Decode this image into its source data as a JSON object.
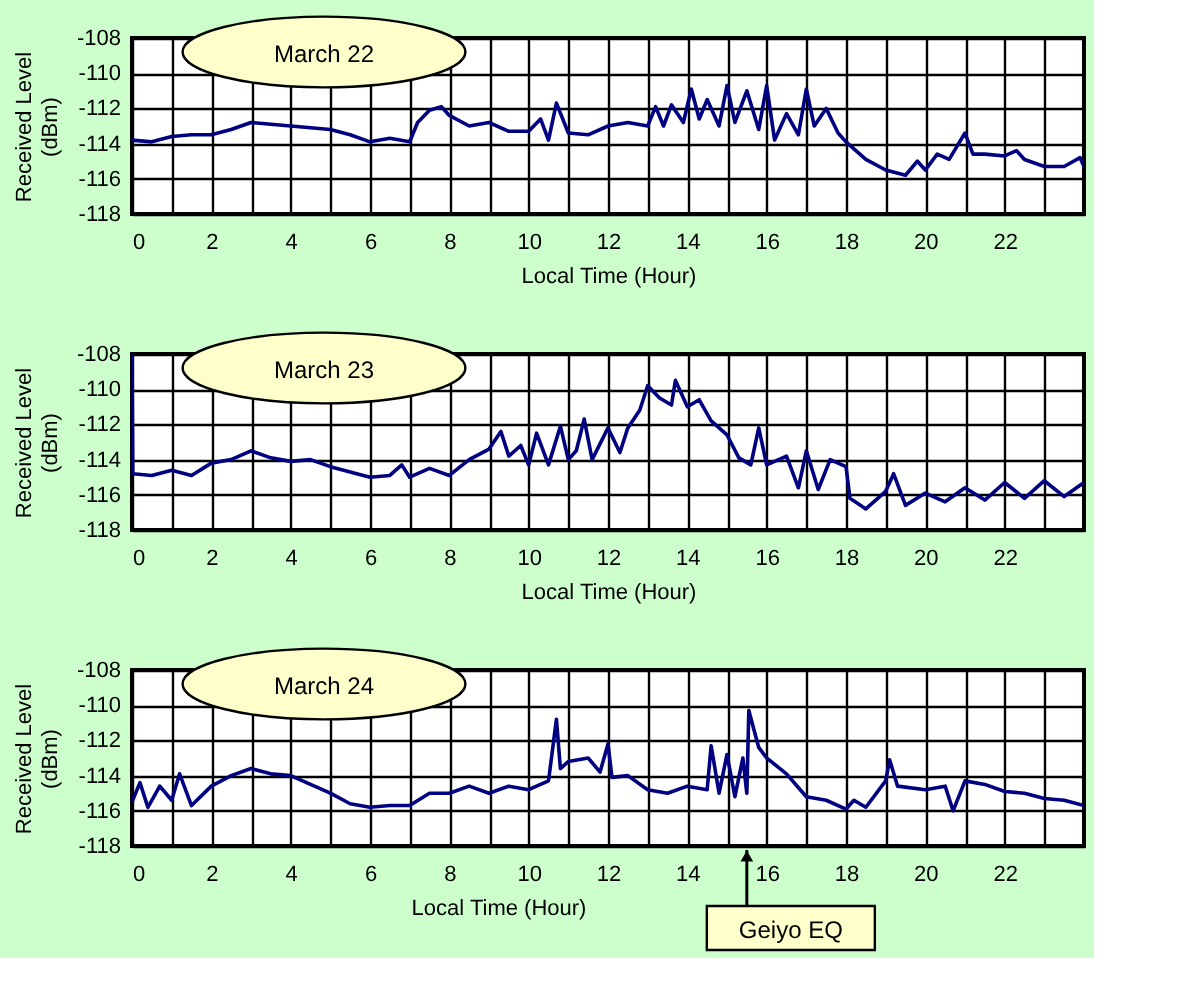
{
  "chart_data": [
    {
      "type": "line",
      "xlabel": "Local Time (Hour)",
      "ylabel": "Received Level\n(dBm)",
      "xlim": [
        0,
        24
      ],
      "ylim": [
        -118,
        -108
      ],
      "grid": true,
      "xticks": [
        0,
        {
          "value": 1,
          "label": null
        },
        2,
        {
          "value": 3,
          "label": null
        },
        4,
        {
          "value": 5,
          "label": null
        },
        6,
        {
          "value": 7,
          "label": null
        },
        8,
        {
          "value": 9,
          "label": null
        },
        10,
        {
          "value": 11,
          "label": null
        },
        12,
        {
          "value": 13,
          "label": null
        },
        14,
        {
          "value": 15,
          "label": null
        },
        16,
        {
          "value": 17,
          "label": null
        },
        18,
        {
          "value": 19,
          "label": null
        },
        20,
        {
          "value": 21,
          "label": null
        },
        22,
        {
          "value": 23,
          "label": null
        }
      ],
      "yticks": [
        -118,
        -116,
        -114,
        -112,
        -110,
        -108
      ],
      "annotations": [
        "March 22"
      ],
      "x": [
        0,
        0.5,
        1,
        1.5,
        2,
        2.5,
        3,
        3.5,
        4,
        4.5,
        5,
        5.5,
        6,
        6.5,
        7,
        7.2,
        7.5,
        7.8,
        8,
        8.5,
        9,
        9.5,
        10,
        10.3,
        10.5,
        10.7,
        11,
        11.5,
        12,
        12.5,
        13,
        13.2,
        13.4,
        13.6,
        13.9,
        14.1,
        14.3,
        14.5,
        14.8,
        15.0,
        15.2,
        15.5,
        15.8,
        16.0,
        16.2,
        16.5,
        16.8,
        17.0,
        17.2,
        17.5,
        17.8,
        18,
        18.5,
        19,
        19.5,
        19.8,
        20,
        20.3,
        20.6,
        21,
        21.2,
        21.5,
        22,
        22.3,
        22.5,
        23,
        23.5,
        23.9,
        24
      ],
      "series": [
        {
          "color": "#000080",
          "values": [
            -113.8,
            -113.9,
            -113.6,
            -113.5,
            -113.5,
            -113.2,
            -112.8,
            -112.9,
            -113.0,
            -113.1,
            -113.2,
            -113.5,
            -113.9,
            -113.7,
            -113.9,
            -112.8,
            -112.1,
            -111.9,
            -112.4,
            -113.0,
            -112.8,
            -113.3,
            -113.3,
            -112.6,
            -113.8,
            -111.7,
            -113.4,
            -113.5,
            -113.0,
            -112.8,
            -113.0,
            -111.9,
            -113.0,
            -111.8,
            -112.8,
            -110.9,
            -112.6,
            -111.5,
            -113.0,
            -110.7,
            -112.8,
            -111.0,
            -113.2,
            -110.7,
            -113.8,
            -112.3,
            -113.5,
            -110.9,
            -113.0,
            -112.0,
            -113.4,
            -113.9,
            -114.9,
            -115.5,
            -115.8,
            -115.0,
            -115.5,
            -114.6,
            -114.9,
            -113.4,
            -114.6,
            -114.6,
            -114.7,
            -114.4,
            -114.9,
            -115.3,
            -115.3,
            -114.8,
            -115.3
          ]
        }
      ]
    },
    {
      "type": "line",
      "xlabel": "Local Time (Hour)",
      "ylabel": "Received Level\n(dBm)",
      "xlim": [
        0,
        24
      ],
      "ylim": [
        -118,
        -108
      ],
      "grid": true,
      "xticks": [
        0,
        {
          "value": 1,
          "label": null
        },
        2,
        {
          "value": 3,
          "label": null
        },
        4,
        {
          "value": 5,
          "label": null
        },
        6,
        {
          "value": 7,
          "label": null
        },
        8,
        {
          "value": 9,
          "label": null
        },
        10,
        {
          "value": 11,
          "label": null
        },
        12,
        {
          "value": 13,
          "label": null
        },
        14,
        {
          "value": 15,
          "label": null
        },
        16,
        {
          "value": 17,
          "label": null
        },
        18,
        {
          "value": 19,
          "label": null
        },
        20,
        {
          "value": 21,
          "label": null
        },
        22,
        {
          "value": 23,
          "label": null
        }
      ],
      "yticks": [
        -118,
        -116,
        -114,
        -112,
        -110,
        -108
      ],
      "annotations": [
        "March 23"
      ],
      "x": [
        0,
        0.02,
        0.5,
        1,
        1.5,
        2,
        2.5,
        3,
        3.5,
        4,
        4.5,
        5,
        5.5,
        6,
        6.5,
        6.8,
        7,
        7.5,
        8,
        8.5,
        9,
        9.3,
        9.5,
        9.8,
        10,
        10.2,
        10.5,
        10.8,
        11,
        11.2,
        11.4,
        11.6,
        12,
        12.3,
        12.5,
        12.8,
        13,
        13.3,
        13.6,
        13.7,
        14,
        14.3,
        14.6,
        15,
        15.3,
        15.6,
        15.8,
        16,
        16.5,
        16.8,
        17,
        17.3,
        17.6,
        18,
        18.1,
        18.5,
        19,
        19.2,
        19.5,
        20,
        20.5,
        21,
        21.5,
        22,
        22.5,
        23,
        23.5,
        24
      ],
      "series": [
        {
          "color": "#000080",
          "values": [
            -108.0,
            -114.8,
            -114.9,
            -114.6,
            -114.9,
            -114.2,
            -114.0,
            -113.5,
            -113.9,
            -114.1,
            -114.0,
            -114.4,
            -114.7,
            -115.0,
            -114.9,
            -114.3,
            -115.0,
            -114.5,
            -114.9,
            -114.0,
            -113.4,
            -112.4,
            -113.8,
            -113.2,
            -114.3,
            -112.5,
            -114.3,
            -112.1,
            -114.0,
            -113.5,
            -111.7,
            -114.0,
            -112.2,
            -113.6,
            -112.2,
            -111.2,
            -109.8,
            -110.5,
            -110.9,
            -109.5,
            -111.0,
            -110.6,
            -111.8,
            -112.6,
            -113.9,
            -114.3,
            -112.2,
            -114.3,
            -113.8,
            -115.6,
            -113.5,
            -115.7,
            -114.0,
            -114.4,
            -116.2,
            -116.8,
            -115.8,
            -114.8,
            -116.6,
            -115.9,
            -116.4,
            -115.6,
            -116.3,
            -115.3,
            -116.2,
            -115.2,
            -116.1,
            -115.3
          ]
        }
      ]
    },
    {
      "type": "line",
      "xlabel": "Local Time (Hour)",
      "ylabel": "Received Level\n(dBm)",
      "xlim": [
        0,
        24
      ],
      "ylim": [
        -118,
        -108
      ],
      "grid": true,
      "xticks": [
        0,
        {
          "value": 1,
          "label": null
        },
        2,
        {
          "value": 3,
          "label": null
        },
        4,
        {
          "value": 5,
          "label": null
        },
        6,
        {
          "value": 7,
          "label": null
        },
        8,
        {
          "value": 9,
          "label": null
        },
        10,
        {
          "value": 11,
          "label": null
        },
        12,
        {
          "value": 13,
          "label": null
        },
        14,
        {
          "value": 15,
          "label": null
        },
        16,
        {
          "value": 17,
          "label": null
        },
        18,
        {
          "value": 19,
          "label": null
        },
        20,
        {
          "value": 21,
          "label": null
        },
        22,
        {
          "value": 23,
          "label": null
        }
      ],
      "yticks": [
        -118,
        -116,
        -114,
        -112,
        -110,
        -108
      ],
      "annotations": [
        "March 24"
      ],
      "ref_lines": [
        {
          "axis": "x",
          "value": 15.5,
          "label": "Geiyo EQ"
        }
      ],
      "x": [
        0,
        0.2,
        0.4,
        0.7,
        1,
        1.2,
        1.5,
        2,
        2.5,
        3,
        3.5,
        4,
        4.5,
        5,
        5.5,
        6,
        6.5,
        7,
        7.5,
        8,
        8.5,
        9,
        9.5,
        10,
        10.5,
        10.7,
        10.8,
        11,
        11.5,
        11.8,
        12,
        12.1,
        12.5,
        13,
        13.5,
        14,
        14.5,
        14.6,
        14.8,
        15,
        15.2,
        15.4,
        15.5,
        15.55,
        15.8,
        16,
        16.5,
        17,
        17.5,
        18,
        18.2,
        18.5,
        19,
        19.1,
        19.3,
        20,
        20.5,
        20.7,
        21,
        21.5,
        22,
        22.5,
        23,
        23.5,
        24
      ],
      "series": [
        {
          "color": "#000080",
          "values": [
            -115.5,
            -114.4,
            -115.8,
            -114.6,
            -115.4,
            -113.9,
            -115.7,
            -114.6,
            -114.0,
            -113.6,
            -113.9,
            -114.0,
            -114.5,
            -115.0,
            -115.6,
            -115.8,
            -115.7,
            -115.7,
            -115.0,
            -115.0,
            -114.6,
            -115.0,
            -114.6,
            -114.8,
            -114.3,
            -110.8,
            -113.6,
            -113.2,
            -113.0,
            -113.8,
            -112.2,
            -114.1,
            -114.0,
            -114.8,
            -115.0,
            -114.6,
            -114.8,
            -112.3,
            -115.0,
            -112.8,
            -115.2,
            -113.0,
            -115.0,
            -110.3,
            -112.4,
            -113.0,
            -113.9,
            -115.2,
            -115.4,
            -115.9,
            -115.4,
            -115.8,
            -114.3,
            -113.1,
            -114.6,
            -114.8,
            -114.6,
            -116.0,
            -114.3,
            -114.5,
            -114.9,
            -115.0,
            -115.3,
            -115.4,
            -115.7
          ]
        }
      ]
    }
  ]
}
